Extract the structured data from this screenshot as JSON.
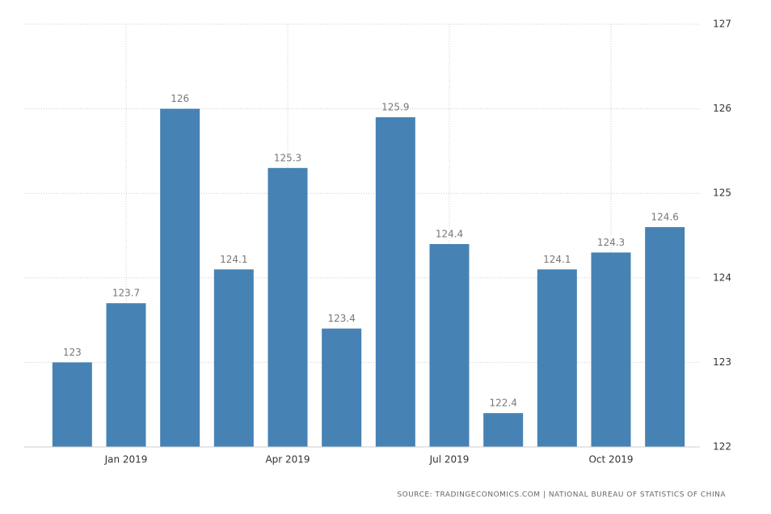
{
  "chart_data": {
    "type": "bar",
    "categories": [
      null,
      "Jan 2019",
      null,
      null,
      "Apr 2019",
      null,
      null,
      "Jul 2019",
      null,
      null,
      "Oct 2019",
      null
    ],
    "values": [
      123,
      123.7,
      126,
      124.1,
      125.3,
      123.4,
      125.9,
      124.4,
      122.4,
      124.1,
      124.3,
      124.6
    ],
    "color": "#4682b4",
    "ylim": [
      122,
      127
    ],
    "yticks": [
      122,
      123,
      124,
      125,
      126,
      127
    ],
    "y_axis_side": "right",
    "grid": true,
    "source": "SOURCE: TRADINGECONOMICS.COM | NATIONAL BUREAU OF STATISTICS OF CHINA"
  }
}
